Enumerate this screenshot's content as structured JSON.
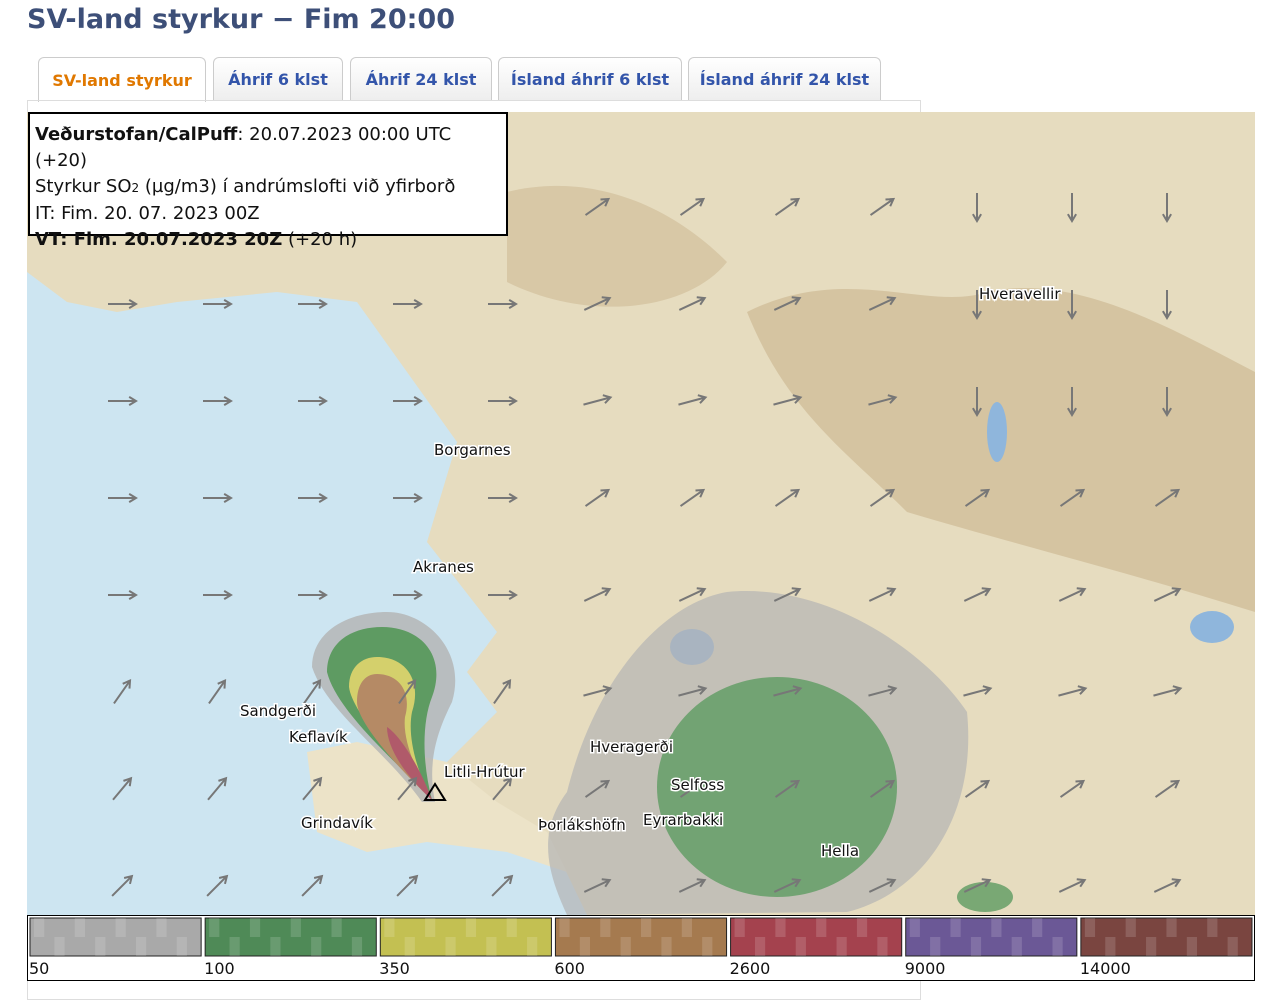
{
  "header": {
    "title": "SV-land styrkur − Fim 20:00"
  },
  "tabs": [
    "SV-land styrkur",
    "Áhrif 6 klst",
    "Áhrif 24 klst",
    "Ísland áhrif 6 klst",
    "Ísland áhrif 24 klst"
  ],
  "info": {
    "line1": {
      "bold": "Veðurstofan/CalPuff",
      "rest": ": 20.07.2023 00:00 UTC (+20)"
    },
    "line2": {
      "pre": "Styrkur SO",
      "sub": "2",
      "rest": " (µg/m3) í andrúmslofti við yfirborð"
    },
    "line3": "IT: Fim. 20. 07. 2023 00Z",
    "line4": {
      "bold": "VT: Fim. 20.07.2023 20Z",
      "rest": " (+20 h)"
    }
  },
  "places": [
    "Hveravellir",
    "Borgarnes",
    "Akranes",
    "Sandgerði",
    "Keflavík",
    "Litli-Hrútur",
    "Grindavík",
    "Hveragerði",
    "Selfoss",
    "Þorlákshöfn",
    "Eyrarbakki",
    "Hella"
  ],
  "legend": {
    "colors": [
      "#a9a9a9",
      "#4f8a57",
      "#c3c052",
      "#a57a4f",
      "#a4424e",
      "#6b5896",
      "#7a4540"
    ],
    "thresholds": [
      50,
      100,
      350,
      600,
      2600,
      9000,
      14000
    ]
  }
}
